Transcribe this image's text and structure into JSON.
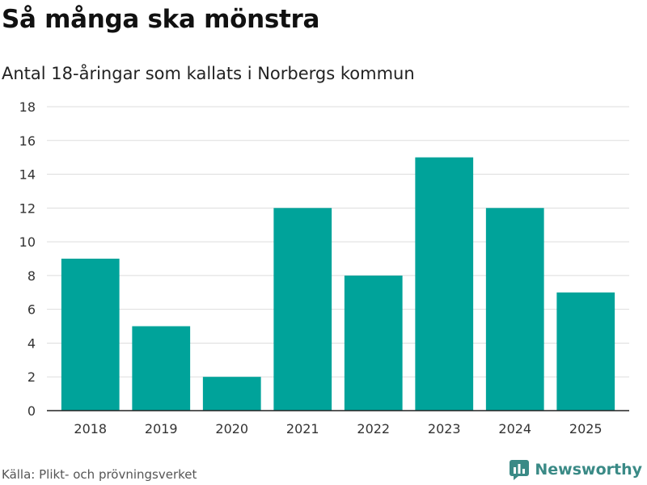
{
  "header": {
    "title": "Så många ska mönstra",
    "subtitle": "Antal 18-åringar som kallats i Norbergs kommun"
  },
  "footer": {
    "source": "Källa: Plikt- och prövningsverket",
    "brand": "Newsworthy",
    "brand_icon": "newsworthy-logo-icon"
  },
  "colors": {
    "bar": "#00a39a",
    "grid": "#dddddd",
    "axis": "#222222",
    "brand": "#3a8a86"
  },
  "chart_data": {
    "type": "bar",
    "title": "Så många ska mönstra",
    "subtitle": "Antal 18-åringar som kallats i Norbergs kommun",
    "xlabel": "",
    "ylabel": "",
    "categories": [
      "2018",
      "2019",
      "2020",
      "2021",
      "2022",
      "2023",
      "2024",
      "2025"
    ],
    "values": [
      9,
      5,
      2,
      12,
      8,
      15,
      12,
      7
    ],
    "ylim": [
      0,
      18
    ],
    "yticks": [
      0,
      2,
      4,
      6,
      8,
      10,
      12,
      14,
      16,
      18
    ],
    "grid": true,
    "legend": "none"
  }
}
